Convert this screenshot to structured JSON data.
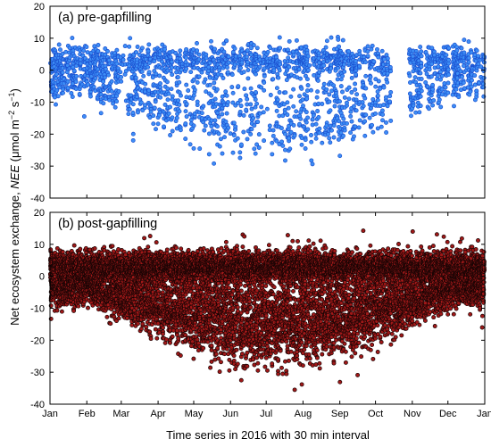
{
  "chart_data": {
    "type": "scatter",
    "xlabel": "Time series in 2016 with 30 min interval",
    "ylabel_parts": [
      "Net ecosystem exchange, ",
      "NEE",
      " (μmol m",
      "−2",
      " s",
      "−1",
      ")"
    ],
    "x_tick_labels": [
      "Jan",
      "Feb",
      "Mar",
      "Apr",
      "May",
      "Jun",
      "Jul",
      "Aug",
      "Sep",
      "Oct",
      "Nov",
      "Dec",
      "Jan"
    ],
    "x_tick_days": [
      0,
      31,
      60,
      91,
      121,
      152,
      182,
      213,
      244,
      274,
      305,
      335,
      366
    ],
    "xlim": [
      0,
      366
    ],
    "y_tick_labels": [
      "-40",
      "-30",
      "-20",
      "-10",
      "0",
      "10",
      "20"
    ],
    "panels": [
      {
        "label": "(a) pre-gapfilling",
        "ylim": [
          -40,
          20
        ],
        "y_ticks": [
          -40,
          -30,
          -20,
          -10,
          0,
          10,
          20
        ],
        "marker_fill": "#3d8ef5",
        "marker_stroke": "#1a4fd0",
        "data_gaps_days": [
          [
            287,
            302
          ],
          [
            313,
            316
          ],
          [
            336,
            339
          ]
        ],
        "approx_value_range": [
          -36,
          16
        ]
      },
      {
        "label": "(b) post-gapfilling",
        "ylim": [
          -40,
          20
        ],
        "y_ticks": [
          -40,
          -30,
          -20,
          -10,
          0,
          10,
          20
        ],
        "marker_fill": "#a01818",
        "marker_stroke": "#1a0505",
        "data_gaps_days": [],
        "approx_value_range": [
          -36,
          16
        ]
      }
    ]
  }
}
